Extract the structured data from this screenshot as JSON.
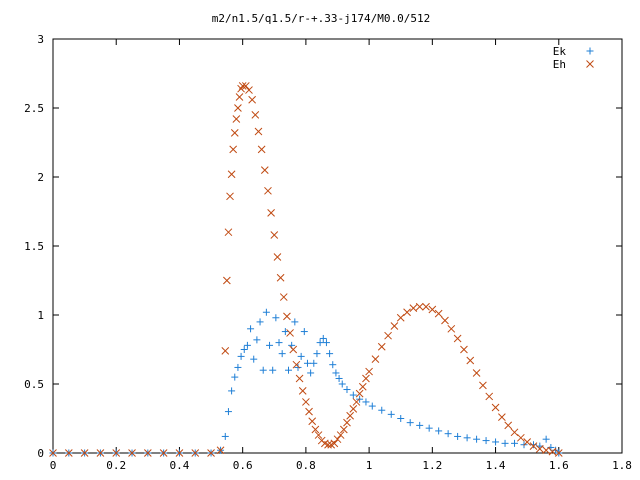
{
  "chart_data": {
    "type": "scatter",
    "title": "m2/n1.5/q1.5/r-+.33-j174/M0.0/512",
    "xlabel": "",
    "ylabel": "",
    "xlim": [
      0,
      1.8
    ],
    "ylim": [
      0,
      3
    ],
    "grid": false,
    "legend_position": "top-right",
    "x_ticks": [
      "0",
      "0.2",
      "0.4",
      "0.6",
      "0.8",
      "1",
      "1.2",
      "1.4",
      "1.6",
      "1.8"
    ],
    "y_ticks": [
      "0",
      "0.5",
      "1",
      "1.5",
      "2",
      "2.5",
      "3"
    ],
    "series": [
      {
        "name": "Ek",
        "marker": "plus",
        "color": "#1f7fd6",
        "x": [
          0.0,
          0.05,
          0.1,
          0.15,
          0.2,
          0.25,
          0.3,
          0.35,
          0.4,
          0.45,
          0.5,
          0.53,
          0.545,
          0.555,
          0.565,
          0.575,
          0.585,
          0.595,
          0.605,
          0.615,
          0.625,
          0.635,
          0.645,
          0.655,
          0.665,
          0.675,
          0.685,
          0.695,
          0.705,
          0.715,
          0.725,
          0.735,
          0.745,
          0.755,
          0.765,
          0.775,
          0.785,
          0.795,
          0.805,
          0.815,
          0.825,
          0.835,
          0.845,
          0.855,
          0.865,
          0.875,
          0.885,
          0.895,
          0.905,
          0.915,
          0.93,
          0.95,
          0.97,
          0.99,
          1.01,
          1.04,
          1.07,
          1.1,
          1.13,
          1.16,
          1.19,
          1.22,
          1.25,
          1.28,
          1.31,
          1.34,
          1.37,
          1.4,
          1.43,
          1.46,
          1.49,
          1.52,
          1.54,
          1.56,
          1.575,
          1.59,
          1.6
        ],
        "y": [
          0.0,
          0.0,
          0.0,
          0.0,
          0.0,
          0.0,
          0.0,
          0.0,
          0.0,
          0.0,
          0.0,
          0.02,
          0.12,
          0.3,
          0.45,
          0.55,
          0.62,
          0.7,
          0.75,
          0.78,
          0.9,
          0.68,
          0.82,
          0.95,
          0.6,
          1.02,
          0.78,
          0.6,
          0.98,
          0.8,
          0.72,
          0.88,
          0.6,
          0.78,
          0.95,
          0.62,
          0.7,
          0.88,
          0.65,
          0.58,
          0.65,
          0.72,
          0.8,
          0.83,
          0.8,
          0.72,
          0.64,
          0.58,
          0.54,
          0.5,
          0.46,
          0.42,
          0.39,
          0.37,
          0.34,
          0.31,
          0.28,
          0.25,
          0.22,
          0.2,
          0.18,
          0.16,
          0.14,
          0.12,
          0.11,
          0.1,
          0.09,
          0.08,
          0.07,
          0.07,
          0.06,
          0.06,
          0.05,
          0.1,
          0.04,
          0.02,
          0.0
        ]
      },
      {
        "name": "Eh",
        "marker": "cross",
        "color": "#c04a12",
        "x": [
          0.0,
          0.05,
          0.1,
          0.15,
          0.2,
          0.25,
          0.3,
          0.35,
          0.4,
          0.45,
          0.5,
          0.53,
          0.545,
          0.55,
          0.555,
          0.56,
          0.565,
          0.57,
          0.575,
          0.58,
          0.585,
          0.59,
          0.595,
          0.6,
          0.61,
          0.62,
          0.63,
          0.64,
          0.65,
          0.66,
          0.67,
          0.68,
          0.69,
          0.7,
          0.71,
          0.72,
          0.73,
          0.74,
          0.75,
          0.76,
          0.77,
          0.78,
          0.79,
          0.8,
          0.81,
          0.82,
          0.83,
          0.84,
          0.85,
          0.86,
          0.87,
          0.88,
          0.89,
          0.9,
          0.91,
          0.92,
          0.93,
          0.94,
          0.95,
          0.96,
          0.97,
          0.98,
          0.99,
          1.0,
          1.02,
          1.04,
          1.06,
          1.08,
          1.1,
          1.12,
          1.14,
          1.16,
          1.18,
          1.2,
          1.22,
          1.24,
          1.26,
          1.28,
          1.3,
          1.32,
          1.34,
          1.36,
          1.38,
          1.4,
          1.42,
          1.44,
          1.46,
          1.48,
          1.5,
          1.52,
          1.54,
          1.56,
          1.58,
          1.6
        ],
        "y": [
          0.0,
          0.0,
          0.0,
          0.0,
          0.0,
          0.0,
          0.0,
          0.0,
          0.0,
          0.0,
          0.0,
          0.02,
          0.74,
          1.25,
          1.6,
          1.86,
          2.02,
          2.2,
          2.32,
          2.42,
          2.5,
          2.58,
          2.64,
          2.66,
          2.66,
          2.63,
          2.56,
          2.45,
          2.33,
          2.2,
          2.05,
          1.9,
          1.74,
          1.58,
          1.42,
          1.27,
          1.13,
          0.99,
          0.87,
          0.75,
          0.64,
          0.54,
          0.45,
          0.37,
          0.3,
          0.23,
          0.17,
          0.13,
          0.09,
          0.07,
          0.06,
          0.06,
          0.07,
          0.1,
          0.13,
          0.17,
          0.22,
          0.27,
          0.32,
          0.37,
          0.43,
          0.48,
          0.54,
          0.59,
          0.68,
          0.77,
          0.85,
          0.92,
          0.98,
          1.02,
          1.05,
          1.06,
          1.06,
          1.04,
          1.01,
          0.96,
          0.9,
          0.83,
          0.75,
          0.67,
          0.58,
          0.49,
          0.41,
          0.33,
          0.26,
          0.2,
          0.15,
          0.11,
          0.08,
          0.05,
          0.03,
          0.02,
          0.01,
          0.0
        ]
      }
    ]
  }
}
